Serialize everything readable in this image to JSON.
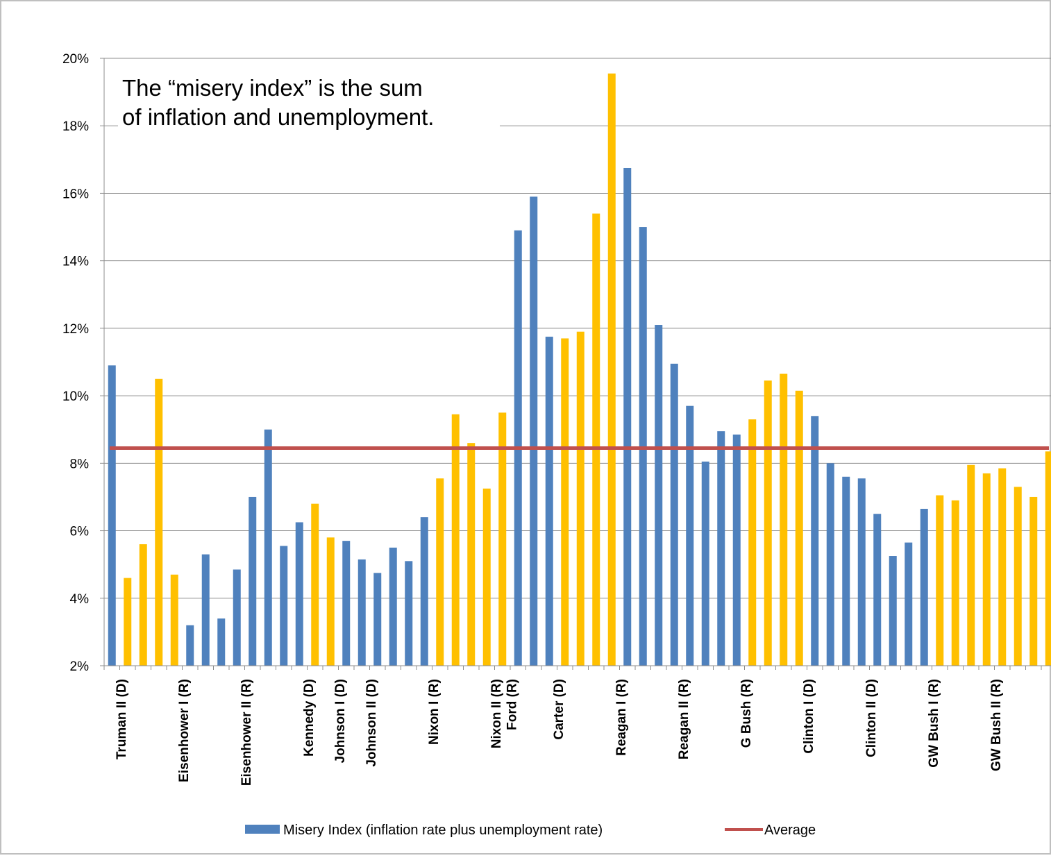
{
  "chart_data": {
    "type": "bar",
    "annotation": [
      "The “misery index” is the sum",
      "of inflation and unemployment."
    ],
    "yaxis": {
      "min": 2,
      "max": 20,
      "step": 2,
      "tick_suffix": "%"
    },
    "grid": true,
    "legend": {
      "placement": "bottom"
    },
    "colors": {
      "blue": "#4f81bd",
      "gold": "#ffc000",
      "average": "#c0504d"
    },
    "series": [
      {
        "name": "Misery Index (inflation rate plus unemployment rate)",
        "values": [
          10.9,
          4.6,
          5.6,
          10.5,
          4.7,
          3.2,
          5.3,
          3.4,
          4.85,
          7.0,
          9.0,
          5.55,
          6.25,
          6.8,
          5.8,
          5.7,
          5.15,
          4.75,
          5.5,
          5.1,
          6.4,
          7.55,
          9.45,
          8.6,
          7.25,
          9.5,
          14.9,
          15.9,
          11.75,
          11.7,
          11.9,
          15.4,
          19.55,
          16.75,
          15.0,
          12.1,
          10.95,
          9.7,
          8.05,
          8.95,
          8.85,
          9.3,
          10.45,
          10.65,
          10.15,
          9.4,
          8.0,
          7.6,
          7.55,
          6.5,
          5.25,
          5.65,
          6.65,
          7.05,
          6.9,
          7.95,
          7.7,
          7.85,
          7.3,
          7.0,
          8.35
        ],
        "party_colors": [
          "blue",
          "gold",
          "gold",
          "gold",
          "gold",
          "blue",
          "blue",
          "blue",
          "blue",
          "blue",
          "blue",
          "blue",
          "blue",
          "gold",
          "gold",
          "blue",
          "blue",
          "blue",
          "blue",
          "blue",
          "blue",
          "gold",
          "gold",
          "gold",
          "gold",
          "gold",
          "blue",
          "blue",
          "blue",
          "gold",
          "gold",
          "gold",
          "gold",
          "blue",
          "blue",
          "blue",
          "blue",
          "blue",
          "blue",
          "blue",
          "blue",
          "gold",
          "gold",
          "gold",
          "gold",
          "blue",
          "blue",
          "blue",
          "blue",
          "blue",
          "blue",
          "blue",
          "blue",
          "gold",
          "gold",
          "gold",
          "gold",
          "gold",
          "gold",
          "gold",
          "gold"
        ]
      },
      {
        "name": "Average",
        "type": "line",
        "value": 8.45
      }
    ],
    "category_labels": [
      {
        "index": 1,
        "label": "Truman II (D)"
      },
      {
        "index": 5,
        "label": "Eisenhower I (R)"
      },
      {
        "index": 9,
        "label": "Eisenhower II (R)"
      },
      {
        "index": 13,
        "label": "Kennedy (D)"
      },
      {
        "index": 15,
        "label": "Johnson I (D)"
      },
      {
        "index": 17,
        "label": "Johnson II (D)"
      },
      {
        "index": 21,
        "label": "Nixon I (R)"
      },
      {
        "index": 25,
        "label": "Nixon II (R)"
      },
      {
        "index": 26,
        "label": "Ford (R)"
      },
      {
        "index": 29,
        "label": "Carter (D)"
      },
      {
        "index": 33,
        "label": "Reagan I (R)"
      },
      {
        "index": 37,
        "label": "Reagan II (R)"
      },
      {
        "index": 41,
        "label": "G Bush (R)"
      },
      {
        "index": 45,
        "label": "Clinton I (D)"
      },
      {
        "index": 49,
        "label": "Clinton II (D)"
      },
      {
        "index": 53,
        "label": "GW Bush I (R)"
      },
      {
        "index": 57,
        "label": "GW Bush II (R)"
      }
    ]
  }
}
